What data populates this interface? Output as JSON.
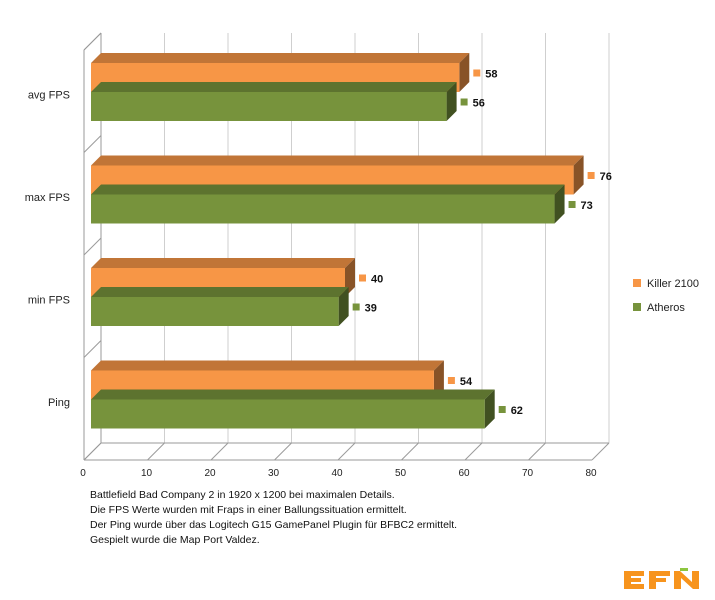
{
  "chart_data": {
    "type": "bar",
    "orientation": "horizontal",
    "three_d": true,
    "title": "",
    "xlabel": "",
    "ylabel": "",
    "categories": [
      "avg FPS",
      "max FPS",
      "min FPS",
      "Ping"
    ],
    "series": [
      {
        "name": "Killer 2100",
        "color": "#F79646",
        "values": [
          58,
          76,
          40,
          54
        ]
      },
      {
        "name": "Atheros",
        "color": "#77933C",
        "values": [
          56,
          73,
          39,
          62
        ]
      }
    ],
    "xlim": [
      0,
      80
    ],
    "xticks": [
      0,
      10,
      20,
      30,
      40,
      50,
      60,
      70,
      80
    ],
    "grid": true,
    "data_labels": true,
    "legend_position": "right"
  },
  "notes": [
    "Battlefield Bad Company 2 in 1920  x 1200  bei maximalen Details.",
    "Die FPS Werte wurden mit Fraps in einer Ballungssituation ermittelt.",
    "Der Ping wurde über das Logitech G15 GamePanel Plugin für BFBC2 ermittelt.",
    "Gespielt wurde die Map Port Valdez."
  ],
  "logo": {
    "name": "EFN",
    "color": "#F7941D",
    "accent": "#8DC63F"
  }
}
